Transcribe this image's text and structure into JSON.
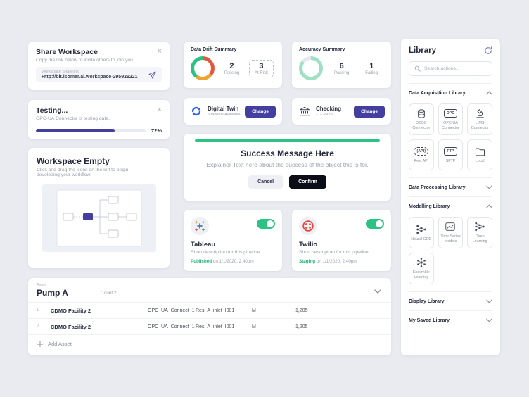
{
  "colors": {
    "accent": "#433f9e",
    "green": "#2bc284",
    "red": "#e4573d",
    "orange": "#f0a32f",
    "background": "#e9ebf1"
  },
  "share_workspace": {
    "title": "Share Workspace",
    "subtitle": "Copy the link below to invite others to join you.",
    "input_label": "Workspace Sharelink",
    "link_value": "Http://bit.isomer.ai.workspace-295929221"
  },
  "testing": {
    "title": "Testing...",
    "subtitle": "OPC-UA Connector is testing data.",
    "progress_pct": 72,
    "progress_label": "72%"
  },
  "workspace_empty": {
    "title": "Workspace Empty",
    "body": "Click and drag the icons on the left to begin developing your workflow."
  },
  "data_drift": {
    "title": "Data Drift Summary",
    "stats": [
      {
        "value": "2",
        "label": "Passing"
      },
      {
        "value": "3",
        "label": "At Risk"
      }
    ],
    "donut": [
      {
        "color": "#e4573d",
        "pct": 35
      },
      {
        "color": "#f0a32f",
        "pct": 25
      },
      {
        "color": "#2bc284",
        "pct": 40
      }
    ]
  },
  "accuracy": {
    "title": "Accuracy Summary",
    "stats": [
      {
        "value": "6",
        "label": "Passing"
      },
      {
        "value": "1",
        "label": "Failing"
      }
    ],
    "donut": [
      {
        "color": "#9fdfc2",
        "pct": 86
      },
      {
        "color": "#e3e7ee",
        "pct": 14
      }
    ]
  },
  "digital_twin": {
    "title": "Digital Twin",
    "subtitle": "5 Models Available",
    "button_label": "Change"
  },
  "checking": {
    "title": "Checking",
    "subtitle": "······2929",
    "button_label": "Change"
  },
  "success_modal": {
    "title": "Success Message Here",
    "body": "Explainer Text here about the success of the object this is for.",
    "cancel_label": "Cancel",
    "confirm_label": "Confirm"
  },
  "pipelines": [
    {
      "name": "Tableau",
      "description": "Short description for this pipeline.",
      "status": "Published",
      "status_detail": " on 1/1/2020, 2:40pm",
      "enabled": true
    },
    {
      "name": "Twilio",
      "description": "Short description for this pipeline.",
      "status": "Staging",
      "status_detail": " on 1/1/2020, 2:40pm",
      "enabled": true
    }
  ],
  "asset_table": {
    "label": "Asset",
    "title": "Pump A",
    "count": "Count 2",
    "rows": [
      {
        "idx": "1",
        "facility": "CDMO Facility 2",
        "connector": "OPC_UA_Connect_1",
        "tag": "Res_A_inlet_I001",
        "type": "M",
        "value": "1,205"
      },
      {
        "idx": "2",
        "facility": "CDMO Facility 2",
        "connector": "OPC_UA_Connect_1",
        "tag": "Res_A_inlet_I001",
        "type": "M",
        "value": "1,205"
      }
    ],
    "add_label": "Add Asset"
  },
  "library": {
    "title": "Library",
    "search_placeholder": "Search actions...",
    "sections": [
      {
        "label": "Data Acquisition Library",
        "expanded": true
      },
      {
        "label": "Data Processing Library",
        "expanded": false
      },
      {
        "label": "Modelling Library",
        "expanded": true
      },
      {
        "label": "Display Library",
        "expanded": false
      },
      {
        "label": "My Saved Library",
        "expanded": false
      }
    ],
    "acquisition_items": [
      {
        "label": "ODBC Connector"
      },
      {
        "label": "OPC UA Connector",
        "icon_text": "OPC"
      },
      {
        "label": "LIMS Connector"
      },
      {
        "label": "Rest API",
        "icon_text": "{API}"
      },
      {
        "label": "SFTP",
        "icon_text": "FTP"
      },
      {
        "label": "Local"
      }
    ],
    "modelling_items": [
      {
        "label": "Neural ODE"
      },
      {
        "label": "Time Series Models"
      },
      {
        "label": "Deep Learning"
      },
      {
        "label": "Ensemble Learning"
      }
    ]
  }
}
